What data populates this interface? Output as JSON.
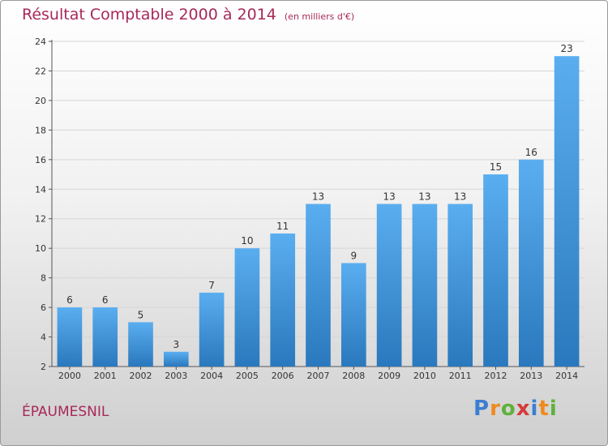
{
  "chart_data": {
    "type": "bar",
    "title": "Résultat Comptable 2000 à 2014",
    "unit_note": "(en milliers d'€)",
    "categories": [
      "2000",
      "2001",
      "2002",
      "2003",
      "2004",
      "2005",
      "2006",
      "2007",
      "2008",
      "2009",
      "2010",
      "2011",
      "2012",
      "2013",
      "2014"
    ],
    "values": [
      6,
      6,
      5,
      3,
      7,
      10,
      11,
      13,
      9,
      13,
      13,
      13,
      15,
      16,
      23
    ],
    "ylim": [
      2,
      24
    ],
    "yticks": [
      2,
      4,
      6,
      8,
      10,
      12,
      14,
      16,
      18,
      20,
      22,
      24
    ],
    "grid": true,
    "xlabel": "",
    "ylabel": ""
  },
  "location": "ÉPAUMESNIL",
  "logo": {
    "letters": [
      "P",
      "r",
      "o",
      "x",
      "i",
      "t",
      "i"
    ],
    "colors": [
      "#3b7fd1",
      "#ef8a1f",
      "#5fb13b",
      "#d63a3a",
      "#3b7fd1",
      "#ef8a1f",
      "#5fb13b"
    ]
  },
  "colors": {
    "title": "#a8285a",
    "bar_top": "#5aaef0",
    "bar_bottom": "#2a78bd",
    "grid": "#d6d6d6"
  }
}
